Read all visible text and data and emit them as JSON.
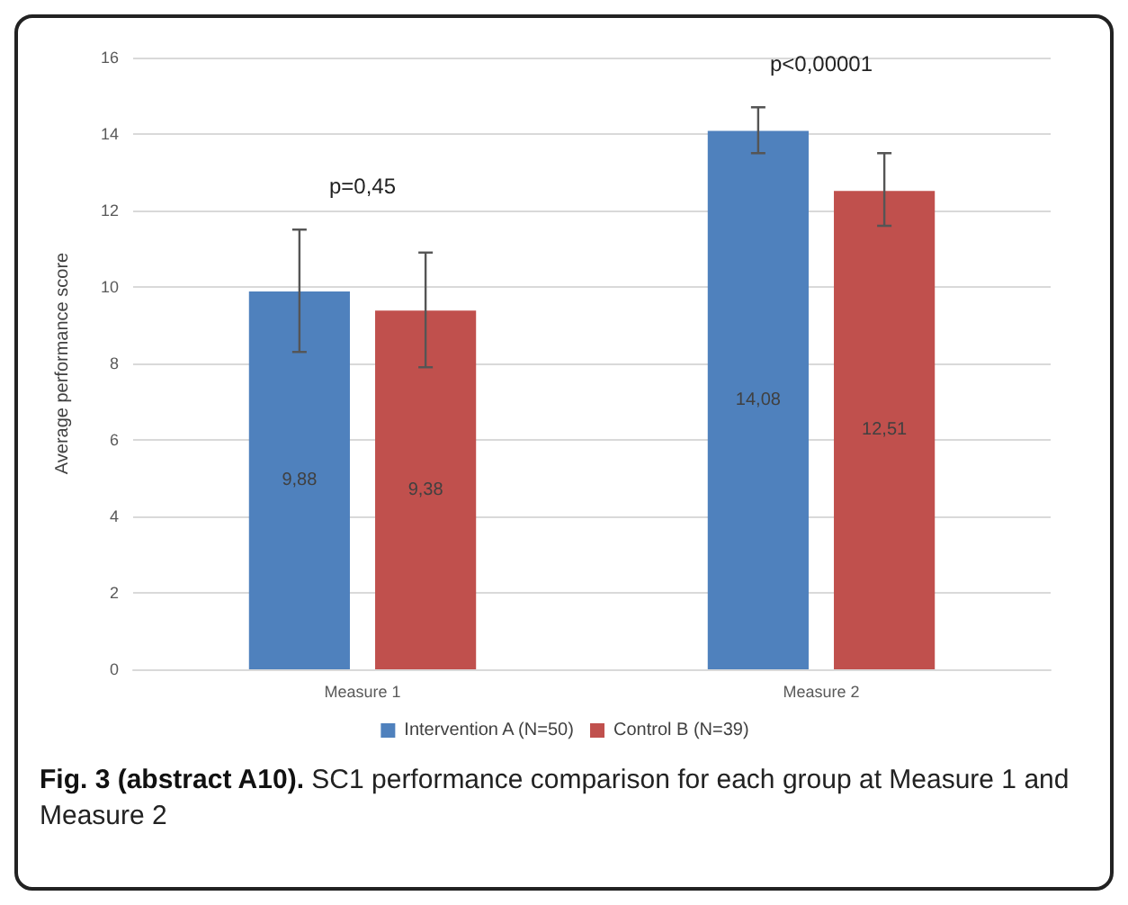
{
  "chart_data": {
    "type": "bar",
    "ylabel": "Average performance score",
    "categories": [
      "Measure 1",
      "Measure 2"
    ],
    "series": [
      {
        "name": "Intervention A (N=50)",
        "color": "#4f81bd",
        "values": [
          9.88,
          14.08
        ],
        "value_labels": [
          "9,88",
          "14,08"
        ],
        "errors": [
          [
            8.3,
            11.5
          ],
          [
            13.5,
            14.7
          ]
        ]
      },
      {
        "name": "Control B (N=39)",
        "color": "#c0504d",
        "values": [
          9.38,
          12.51
        ],
        "value_labels": [
          "9,38",
          "12,51"
        ],
        "errors": [
          [
            7.9,
            10.9
          ],
          [
            11.6,
            13.5
          ]
        ]
      }
    ],
    "ylim": [
      0,
      16
    ],
    "yticks": [
      0,
      2,
      4,
      6,
      8,
      10,
      12,
      14,
      16
    ],
    "grid": "y",
    "legend": "bottom",
    "annotations": [
      "p=0,45",
      "p<0,00001",
      "Fig. 3 (abstract A10).",
      "SC1 performance comparison for each group at Measure 1 and Measure 2"
    ]
  }
}
